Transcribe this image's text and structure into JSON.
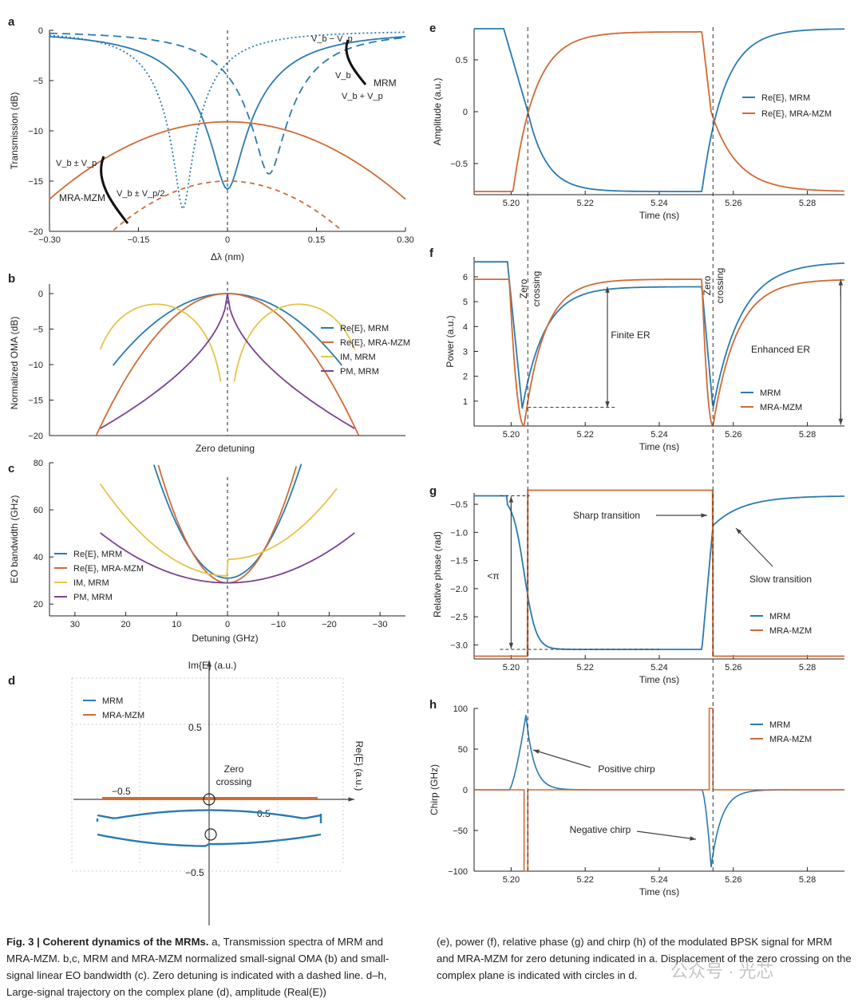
{
  "colors": {
    "blue": "#2a7bb0",
    "orange": "#cf6b36",
    "yellow": "#e5c44a",
    "purple": "#7b4290"
  },
  "chart_data": [
    {
      "panel": "a",
      "type": "line",
      "xlabel": "Δλ (nm)",
      "ylabel": "Transmission (dB)",
      "xlim": [
        -0.3,
        0.3
      ],
      "ylim": [
        -20,
        0
      ],
      "xticks": [
        "−0.30",
        "−0.15",
        "0",
        "0.15",
        "0.30"
      ],
      "yticks": [
        "0",
        "−5",
        "−10",
        "−15",
        "−20"
      ],
      "annotations": {
        "vb_minus_vp": "V_b − V_p",
        "vb": "V_b",
        "vb_plus_vp": "V_b + V_p",
        "mrm": "MRM",
        "vb_pm_vp": "V_b ± V_p",
        "vb_pm_vp2": "V_b ± V_p/2",
        "mramzm": "MRA-MZM"
      },
      "series": [
        {
          "name": "MRM V_b",
          "center": 0,
          "depth_db": -15.8
        },
        {
          "name": "MRM V_b − V_p",
          "center": -0.075,
          "depth_db": -17.8
        },
        {
          "name": "MRM V_b + V_p",
          "center": 0.07,
          "depth_db": -14.3
        },
        {
          "name": "MRA-MZM V_b ± V_p",
          "peak_db": -9.1
        },
        {
          "name": "MRA-MZM V_b ± V_p/2",
          "peak_db": -15
        }
      ]
    },
    {
      "panel": "b",
      "type": "line",
      "xlabel": "Zero detuning",
      "ylabel": "Normalized OMA (dB)",
      "ylim": [
        -20,
        0
      ],
      "yticks": [
        "0",
        "−5",
        "−10",
        "−15",
        "−20"
      ],
      "legend": [
        "Re{E}, MRM",
        "Re{E}, MRA-MZM",
        "IM, MRM",
        "PM, MRM"
      ]
    },
    {
      "panel": "c",
      "type": "line",
      "xlabel": "Detuning (GHz)",
      "ylabel": "EO bandwidth (GHz)",
      "xlim": [
        35,
        -35
      ],
      "ylim": [
        15,
        80
      ],
      "xticks": [
        "30",
        "20",
        "10",
        "0",
        "−10",
        "−20",
        "−30"
      ],
      "yticks": [
        "80",
        "60",
        "40",
        "20"
      ],
      "legend": [
        "Re{E}, MRM",
        "Re{E}, MRA-MZM",
        "IM, MRM",
        "PM, MRM"
      ]
    },
    {
      "panel": "d",
      "type": "scatter",
      "xlabel": "Re{E} (a.u.)",
      "ylabel": "Im{E} (a.u.)",
      "tick_pos": "0.5",
      "tick_neg": "−0.5",
      "annotation": "Zero crossing",
      "legend": [
        "MRM",
        "MRA-MZM"
      ]
    },
    {
      "panel": "e",
      "type": "line",
      "xlabel": "Time (ns)",
      "ylabel": "Amplitude (a.u.)",
      "xlim": [
        5.19,
        5.29
      ],
      "ylim": [
        -0.8,
        0.8
      ],
      "xticks": [
        "5.20",
        "5.22",
        "5.24",
        "5.26",
        "5.28"
      ],
      "yticks": [
        "0.5",
        "0",
        "−0.5"
      ],
      "legend": [
        "Re{E}, MRM",
        "Re{E}, MRA-MZM"
      ]
    },
    {
      "panel": "f",
      "type": "line",
      "xlabel": "Time (ns)",
      "ylabel": "Power (a.u.)",
      "xlim": [
        5.19,
        5.29
      ],
      "ylim": [
        0,
        6.8
      ],
      "xticks": [
        "5.20",
        "5.22",
        "5.24",
        "5.26",
        "5.28"
      ],
      "yticks": [
        "6",
        "5",
        "4",
        "3",
        "2",
        "1"
      ],
      "annotations": [
        "Zero crossing",
        "Zero crossing",
        "Finite ER",
        "Enhanced ER"
      ],
      "legend": [
        "MRM",
        "MRA-MZM"
      ]
    },
    {
      "panel": "g",
      "type": "line",
      "xlabel": "Time (ns)",
      "ylabel": "Relative phase (rad)",
      "xlim": [
        5.19,
        5.29
      ],
      "ylim": [
        -3.25,
        -0.3
      ],
      "xticks": [
        "5.20",
        "5.22",
        "5.24",
        "5.26",
        "5.28"
      ],
      "yticks": [
        "−0.5",
        "−1.0",
        "−1.5",
        "−2.0",
        "−2.5",
        "−3.0"
      ],
      "annotations": [
        "Sharp transition",
        "Slow transition",
        "<π"
      ],
      "legend": [
        "MRM",
        "MRA-MZM"
      ]
    },
    {
      "panel": "h",
      "type": "line",
      "xlabel": "Time (ns)",
      "ylabel": "Chirp (GHz)",
      "xlim": [
        5.19,
        5.29
      ],
      "ylim": [
        -100,
        100
      ],
      "xticks": [
        "5.20",
        "5.22",
        "5.24",
        "5.26",
        "5.28"
      ],
      "yticks": [
        "100",
        "50",
        "0",
        "−50",
        "−100"
      ],
      "annotations": [
        "Positive chirp",
        "Negative chirp"
      ],
      "legend": [
        "MRM",
        "MRA-MZM"
      ]
    }
  ],
  "caption": {
    "title": "Fig. 3 | Coherent dynamics of the MRMs.",
    "left": " a, Transmission spectra of MRM and MRA-MZM. b,c, MRM and MRA-MZM normalized small-signal OMA (b) and small-signal linear EO bandwidth (c). Zero detuning is indicated with a dashed line. d–h, Large-signal trajectory on the complex plane (d), amplitude (Real(E))",
    "right": "(e), power (f), relative phase (g) and chirp (h) of the modulated BPSK signal for MRM and MRA-MZM for zero detuning indicated in a. Displacement of the zero crossing on the complex plane is indicated with circles in d."
  },
  "watermark": "公众号 · 光芯"
}
